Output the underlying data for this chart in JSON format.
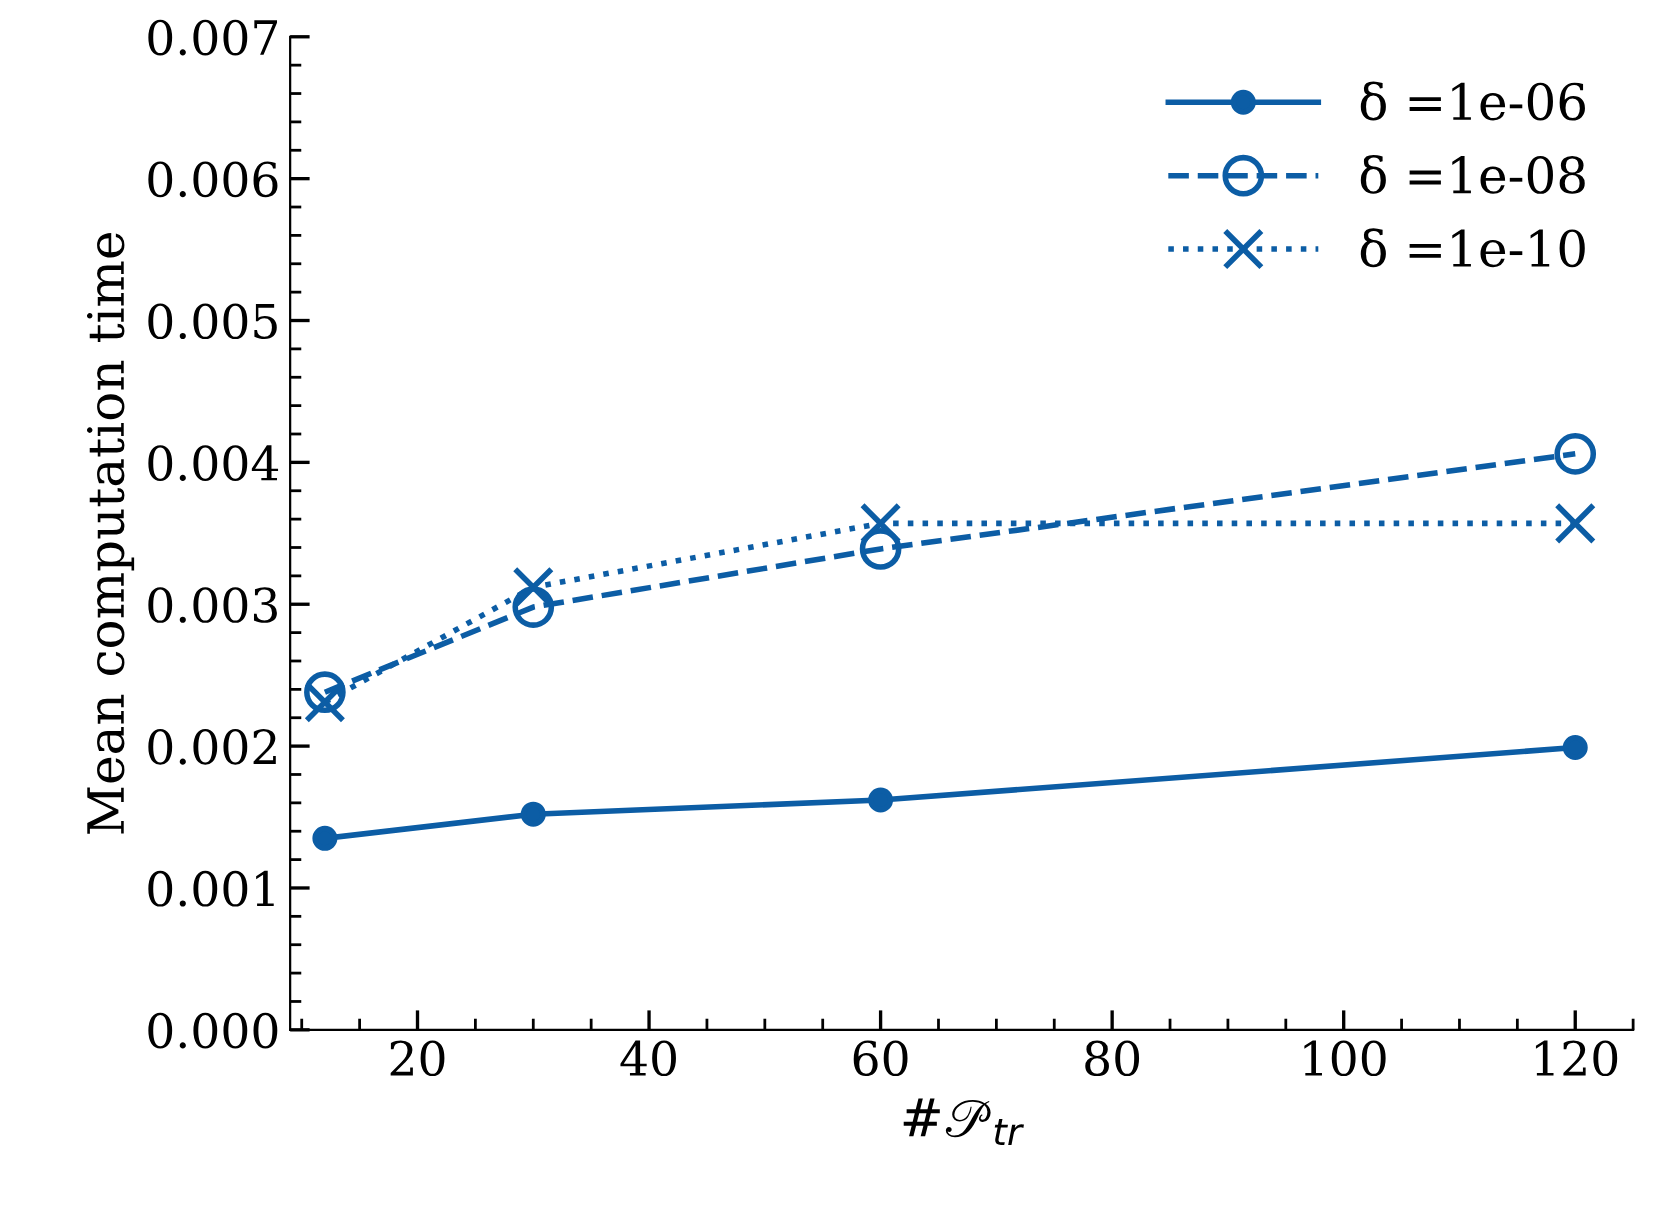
{
  "chart_data": {
    "type": "line",
    "xlabel": "#𝒫$_{tr}$",
    "ylabel": "Mean computation time",
    "x": [
      12,
      30,
      60,
      120
    ],
    "series": [
      {
        "name": "δ =1e-06",
        "color": "#0c5da5",
        "values": [
          0.00135,
          0.00152,
          0.00162,
          0.00199
        ],
        "marker": "circle",
        "line_style": "solid"
      },
      {
        "name": "δ =1e-08",
        "color": "#0c5da5",
        "values": [
          0.00238,
          0.00298,
          0.00339,
          0.00406
        ],
        "marker": "circle",
        "line_style": "dashed"
      },
      {
        "name": "δ =1e-10",
        "color": "#0c5da5",
        "values": [
          0.00231,
          0.00312,
          0.00357,
          0.00357
        ],
        "marker": "cross",
        "line_style": "dotted"
      }
    ],
    "xlim": [
      9,
      125
    ],
    "xticks": [
      20,
      40,
      60,
      80,
      100,
      120
    ],
    "ylim": [
      0,
      0.007
    ],
    "yticks": [
      {
        "value": 0,
        "label": "0.000"
      },
      {
        "value": 0.001,
        "label": "0.001"
      },
      {
        "value": 0.002,
        "label": "0.002"
      },
      {
        "value": 0.003,
        "label": "0.003"
      },
      {
        "value": 0.004,
        "label": "0.004"
      },
      {
        "value": 0.005,
        "label": "0.005"
      },
      {
        "value": 0.006,
        "label": "0.006"
      },
      {
        "value": 0.007,
        "label": "0.007"
      }
    ],
    "grid": false,
    "legend": "top right"
  }
}
